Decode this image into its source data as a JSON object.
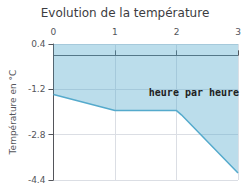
{
  "chart_data": {
    "type": "line",
    "title": "Evolution de la température",
    "ylabel": "Température en °C",
    "x": [
      0,
      1.0,
      2.0,
      2.08,
      3.0
    ],
    "values": [
      -1.38,
      -1.95,
      -1.95,
      -2.1,
      -4.15
    ],
    "color": "#55aacc",
    "xlim": [
      0,
      3
    ],
    "xticks": [
      0,
      1,
      2,
      3
    ],
    "ylim": [
      -4.4,
      0.4
    ],
    "yticks": [
      0.4,
      -1.2,
      -2.8,
      -4.4
    ],
    "grid": true,
    "annotations": [
      {
        "text": "heure par heure",
        "x": 1.55,
        "y": -1.3
      }
    ]
  }
}
